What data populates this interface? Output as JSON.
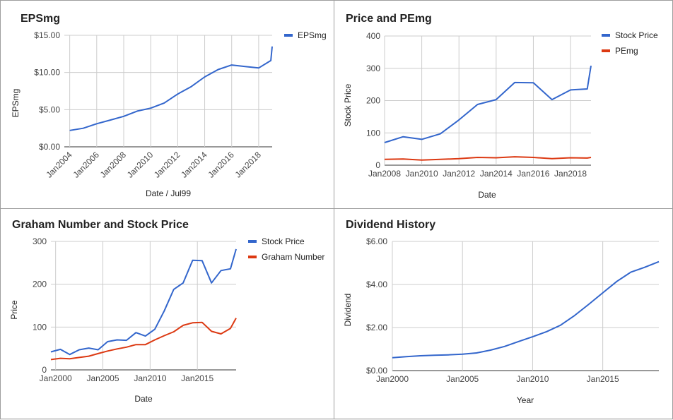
{
  "chart_data": [
    {
      "type": "line",
      "title": "EPSmg",
      "xlabel": "Date / Jul99",
      "ylabel": "EPSmg",
      "x_tick_labels": [
        "Jan2004",
        "Jan2006",
        "Jan2008",
        "Jan2010",
        "Jan2012",
        "Jan2014",
        "Jan2016",
        "Jan2018"
      ],
      "y_tick_labels": [
        "$0.00",
        "$5.00",
        "$10.00",
        "$15.00"
      ],
      "xlim": [
        2003.6,
        2019.0
      ],
      "ylim": [
        0,
        15
      ],
      "x_ticks": [
        2004,
        2006,
        2008,
        2010,
        2012,
        2014,
        2016,
        2018
      ],
      "y_ticks": [
        0,
        5,
        10,
        15
      ],
      "grid": true,
      "legend_position": "right",
      "series": [
        {
          "name": "EPSmg",
          "color": "#3366cc",
          "x": [
            2004,
            2005,
            2006,
            2007,
            2008,
            2009,
            2010,
            2011,
            2012,
            2013,
            2014,
            2015,
            2016,
            2017,
            2018,
            2018.9,
            2019.0
          ],
          "y": [
            2.2,
            2.5,
            3.1,
            3.6,
            4.1,
            4.8,
            5.2,
            5.9,
            7.1,
            8.1,
            9.4,
            10.4,
            11.0,
            10.8,
            10.6,
            11.6,
            13.5
          ]
        }
      ]
    },
    {
      "type": "line",
      "title": "Price and PEmg",
      "xlabel": "Date",
      "ylabel": "Stock Price",
      "x_tick_labels": [
        "Jan2008",
        "Jan2010",
        "Jan2012",
        "Jan2014",
        "Jan2016",
        "Jan2018"
      ],
      "y_tick_labels": [
        "0",
        "100",
        "200",
        "300",
        "400"
      ],
      "xlim": [
        2008,
        2019.1
      ],
      "ylim": [
        0,
        400
      ],
      "x_ticks": [
        2008,
        2010,
        2012,
        2014,
        2016,
        2018
      ],
      "y_ticks": [
        0,
        100,
        200,
        300,
        400
      ],
      "grid": true,
      "legend_position": "right",
      "series": [
        {
          "name": "Stock Price",
          "color": "#3366cc",
          "x": [
            2008,
            2009,
            2010,
            2011,
            2012,
            2013,
            2014,
            2015,
            2016,
            2017,
            2018,
            2018.9,
            2019.1
          ],
          "y": [
            70,
            88,
            80,
            97,
            140,
            188,
            203,
            256,
            255,
            203,
            233,
            236,
            308
          ]
        },
        {
          "name": "PEmg",
          "color": "#dc3912",
          "x": [
            2008,
            2009,
            2010,
            2011,
            2012,
            2013,
            2014,
            2015,
            2016,
            2017,
            2018,
            2018.9,
            2019.1
          ],
          "y": [
            18,
            19,
            16,
            18,
            20,
            24,
            23,
            26,
            24,
            20,
            23,
            22,
            24
          ]
        }
      ]
    },
    {
      "type": "line",
      "title": "Graham Number and Stock Price",
      "xlabel": "Date",
      "ylabel": "Price",
      "x_tick_labels": [
        "Jan2000",
        "Jan2005",
        "Jan2010",
        "Jan2015"
      ],
      "y_tick_labels": [
        "0",
        "100",
        "200",
        "300"
      ],
      "xlim": [
        1999.5,
        2019.1
      ],
      "ylim": [
        0,
        300
      ],
      "x_ticks": [
        2000,
        2005,
        2010,
        2015
      ],
      "y_ticks": [
        0,
        100,
        200,
        300
      ],
      "grid": true,
      "legend_position": "right",
      "series": [
        {
          "name": "Stock Price",
          "color": "#3366cc",
          "x": [
            1999.5,
            2000.5,
            2001.5,
            2002.5,
            2003.5,
            2004.5,
            2005.5,
            2006.5,
            2007.5,
            2008.5,
            2009.5,
            2010.5,
            2011.5,
            2012.5,
            2013.5,
            2014.5,
            2015.5,
            2016.5,
            2017.5,
            2018.5,
            2019.1
          ],
          "y": [
            42,
            48,
            36,
            47,
            51,
            47,
            66,
            70,
            69,
            87,
            79,
            95,
            138,
            188,
            203,
            256,
            255,
            203,
            232,
            236,
            282
          ]
        },
        {
          "name": "Graham Number",
          "color": "#dc3912",
          "x": [
            1999.5,
            2000.5,
            2001.5,
            2002.5,
            2003.5,
            2004.5,
            2005.5,
            2006.5,
            2007.5,
            2008.5,
            2009.5,
            2010.5,
            2011.5,
            2012.5,
            2013.5,
            2014.5,
            2015.5,
            2016.5,
            2017.5,
            2018.5,
            2019.1
          ],
          "y": [
            24,
            27,
            26,
            29,
            32,
            38,
            44,
            49,
            53,
            59,
            59,
            70,
            80,
            89,
            104,
            110,
            111,
            90,
            84,
            97,
            121
          ]
        }
      ]
    },
    {
      "type": "line",
      "title": "Dividend History",
      "xlabel": "Year",
      "ylabel": "Dividend",
      "x_tick_labels": [
        "Jan2000",
        "Jan2005",
        "Jan2010",
        "Jan2015"
      ],
      "y_tick_labels": [
        "$0.00",
        "$2.00",
        "$4.00",
        "$6.00"
      ],
      "xlim": [
        2000,
        2019
      ],
      "ylim": [
        0,
        6
      ],
      "x_ticks": [
        2000,
        2005,
        2010,
        2015
      ],
      "y_ticks": [
        0,
        2,
        4,
        6
      ],
      "grid": true,
      "legend_position": "none",
      "series": [
        {
          "color": "#3366cc",
          "x": [
            2000,
            2001,
            2002,
            2003,
            2004,
            2005,
            2006,
            2007,
            2008,
            2009,
            2010,
            2011,
            2012,
            2013,
            2014,
            2015,
            2016,
            2017,
            2018,
            2019
          ],
          "y": [
            0.6,
            0.65,
            0.69,
            0.71,
            0.73,
            0.76,
            0.82,
            0.95,
            1.12,
            1.35,
            1.57,
            1.81,
            2.11,
            2.56,
            3.08,
            3.61,
            4.14,
            4.57,
            4.8,
            5.06
          ]
        }
      ]
    }
  ]
}
